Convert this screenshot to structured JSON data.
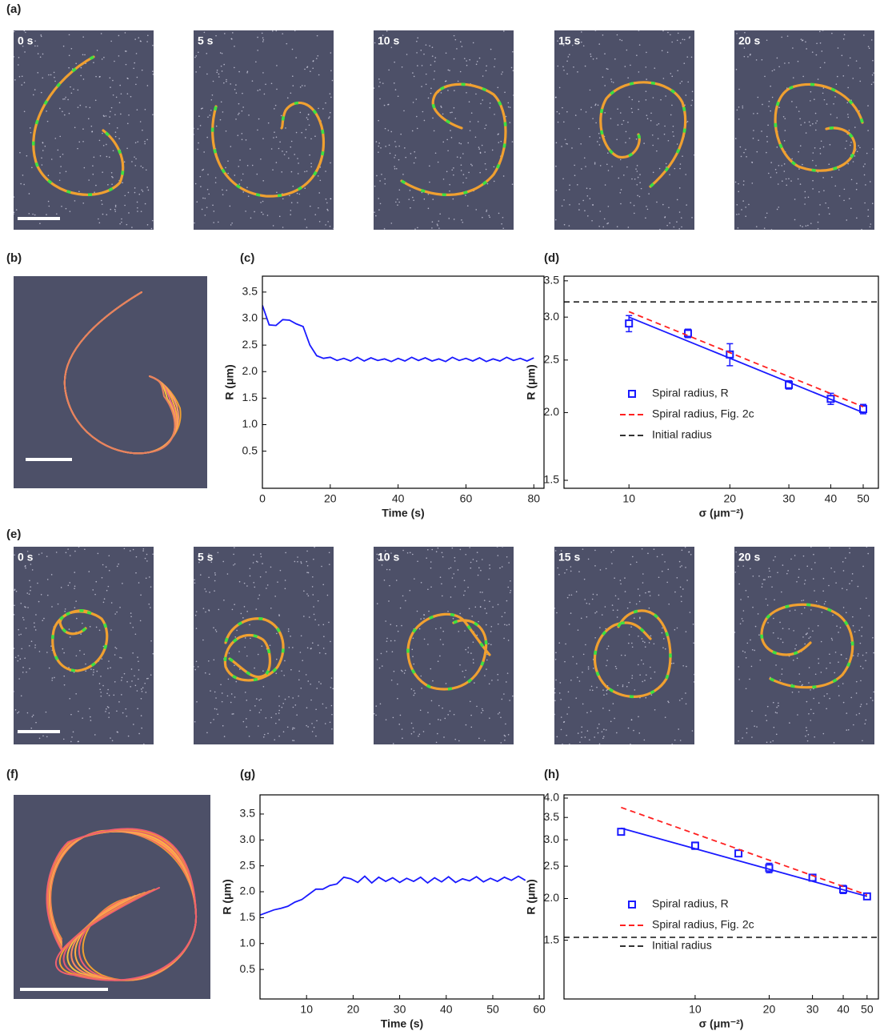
{
  "labels": [
    "(a)",
    "(b)",
    "(c)",
    "(d)",
    "(e)",
    "(f)",
    "(g)",
    "(h)"
  ],
  "frames": [
    "0 s",
    "5 s",
    "10 s",
    "15 s",
    "20 s"
  ],
  "chart_data": [
    {
      "type": "line",
      "x_label": "Time (s)",
      "y_label": "R (μm)",
      "xlim": [
        0,
        83
      ],
      "ylim": [
        -0.2,
        3.8
      ],
      "xticks": [
        0,
        20,
        40,
        60,
        80
      ],
      "yticks": [
        0.5,
        {
          "value": 1,
          "label": "1.0"
        },
        1.5,
        {
          "value": 2,
          "label": "2.0"
        },
        2.5,
        {
          "value": 3,
          "label": "3.0"
        },
        3.5
      ],
      "series": [
        {
          "color": "#1a1aff",
          "x": [
            0,
            2,
            4,
            6,
            8,
            10,
            12,
            14,
            16,
            18,
            20,
            22,
            24,
            26,
            28,
            30,
            32,
            34,
            36,
            38,
            40,
            42,
            44,
            46,
            48,
            50,
            52,
            54,
            56,
            58,
            60,
            62,
            64,
            66,
            68,
            70,
            72,
            74,
            76,
            78,
            80
          ],
          "values": [
            3.25,
            2.88,
            2.87,
            2.98,
            2.97,
            2.9,
            2.85,
            2.5,
            2.3,
            2.25,
            2.27,
            2.21,
            2.25,
            2.2,
            2.27,
            2.2,
            2.26,
            2.21,
            2.24,
            2.19,
            2.25,
            2.2,
            2.27,
            2.21,
            2.26,
            2.2,
            2.24,
            2.19,
            2.27,
            2.21,
            2.25,
            2.2,
            2.26,
            2.19,
            2.24,
            2.2,
            2.27,
            2.21,
            2.25,
            2.2,
            2.26
          ]
        }
      ]
    },
    {
      "type": "scatter",
      "x_label": "σ (μm⁻²)",
      "y_label": "R (μm)",
      "xscale": "log",
      "yscale": "log",
      "legend": "lower left",
      "xlim": [
        6.4,
        55.5
      ],
      "ylim": [
        1.45,
        3.57
      ],
      "xticks": [
        10,
        20,
        30,
        40,
        50
      ],
      "yticks": [
        1.5,
        {
          "value": 2,
          "label": "2.0"
        },
        2.5,
        {
          "value": 3,
          "label": "3.0"
        },
        3.5
      ],
      "series": [
        {
          "name": "Spiral radius, R",
          "type": "scatter",
          "color": "#1a1aff",
          "x": [
            10,
            15,
            20,
            30,
            40,
            50
          ],
          "values": [
            2.92,
            2.8,
            2.56,
            2.25,
            2.12,
            2.03
          ],
          "errors": [
            0.1,
            0.05,
            0.12,
            0.04,
            0.05,
            0.04
          ]
        },
        {
          "type": "line",
          "color": "#1a1aff",
          "x": [
            10,
            50
          ],
          "values": [
            3.0,
            2.0
          ]
        },
        {
          "name": "Spiral radius, Fig. 2c",
          "type": "line",
          "dash": true,
          "color": "#ff2020",
          "x": [
            10,
            50
          ],
          "values": [
            3.07,
            2.05
          ]
        },
        {
          "name": "Initial radius",
          "type": "line",
          "dash": true,
          "color": "#333333",
          "x": [
            6.4,
            55.5
          ],
          "values": [
            3.2,
            3.2
          ]
        }
      ]
    },
    {
      "type": "line",
      "x_label": "Time (s)",
      "y_label": "R (μm)",
      "xlim": [
        0,
        61
      ],
      "ylim": [
        -0.07,
        3.87
      ],
      "xticks": [
        10,
        20,
        30,
        40,
        50,
        60
      ],
      "yticks": [
        0.5,
        {
          "value": 1,
          "label": "1.0"
        },
        1.5,
        {
          "value": 2,
          "label": "2.0"
        },
        2.5,
        {
          "value": 3,
          "label": "3.0"
        },
        3.5
      ],
      "series": [
        {
          "color": "#1a1aff",
          "x": [
            0,
            1.5,
            3,
            4.5,
            6,
            7.5,
            9,
            10.5,
            12,
            13.5,
            15,
            16.5,
            18,
            19.5,
            21,
            22.5,
            24,
            25.5,
            27,
            28.5,
            30,
            31.5,
            33,
            34.5,
            36,
            37.5,
            39,
            40.5,
            42,
            43.5,
            45,
            46.5,
            48,
            49.5,
            51,
            52.5,
            54,
            55.5,
            57
          ],
          "values": [
            1.55,
            1.6,
            1.65,
            1.68,
            1.72,
            1.8,
            1.85,
            1.95,
            2.05,
            2.05,
            2.12,
            2.15,
            2.28,
            2.25,
            2.18,
            2.3,
            2.17,
            2.28,
            2.2,
            2.27,
            2.18,
            2.26,
            2.2,
            2.28,
            2.17,
            2.27,
            2.19,
            2.29,
            2.18,
            2.25,
            2.21,
            2.29,
            2.19,
            2.26,
            2.2,
            2.28,
            2.22,
            2.3,
            2.22
          ]
        }
      ]
    },
    {
      "type": "scatter",
      "x_label": "σ (μm⁻²)",
      "y_label": "R (μm)",
      "xscale": "log",
      "yscale": "log",
      "legend": "lower left",
      "xlim": [
        2.93,
        55.6
      ],
      "ylim": [
        1.0,
        4.09
      ],
      "xticks": [
        10,
        20,
        30,
        40,
        50
      ],
      "yticks": [
        1.5,
        {
          "value": 2,
          "label": "2.0"
        },
        2.5,
        {
          "value": 3,
          "label": "3.0"
        },
        3.5,
        {
          "value": 4,
          "label": "4.0"
        }
      ],
      "series": [
        {
          "name": "Spiral radius, R",
          "type": "scatter",
          "color": "#1a1aff",
          "x": [
            5,
            10,
            15,
            20,
            30,
            40,
            50
          ],
          "values": [
            3.17,
            2.88,
            2.73,
            2.47,
            2.31,
            2.13,
            2.03
          ],
          "errors": [
            0.05,
            0.07,
            0.05,
            0.08,
            0.05,
            0.06,
            0.03
          ]
        },
        {
          "type": "line",
          "color": "#1a1aff",
          "x": [
            5,
            50
          ],
          "values": [
            3.25,
            2.03
          ]
        },
        {
          "name": "Spiral radius, Fig. 2c",
          "type": "line",
          "dash": true,
          "color": "#ff2020",
          "x": [
            5,
            50
          ],
          "values": [
            3.75,
            2.05
          ]
        },
        {
          "name": "Initial radius",
          "type": "line",
          "dash": true,
          "color": "#333333",
          "x": [
            2.93,
            55.6
          ],
          "values": [
            1.53,
            1.53
          ]
        }
      ]
    }
  ]
}
